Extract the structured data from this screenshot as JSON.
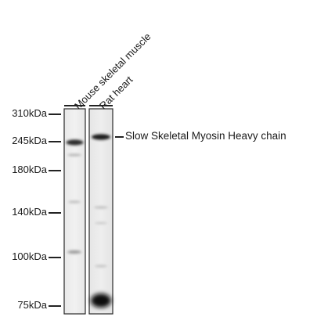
{
  "markers": [
    {
      "label": "310kDa"
    },
    {
      "label": "245kDa"
    },
    {
      "label": "180kDa"
    },
    {
      "label": "140kDa"
    },
    {
      "label": "100kDa"
    },
    {
      "label": "75kDa"
    }
  ],
  "lanes": [
    {
      "label": "Mouse skeletal muscle"
    },
    {
      "label": "Rat heart"
    }
  ],
  "target": {
    "label": "Slow Skeletal Myosin Heavy chain"
  }
}
